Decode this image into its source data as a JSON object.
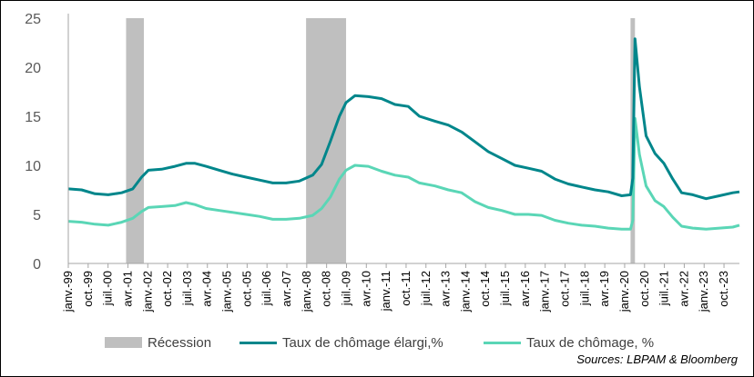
{
  "chart_data": {
    "type": "line",
    "title": "",
    "xlabel": "",
    "ylabel": "",
    "ylim": [
      0,
      25
    ],
    "yticks": [
      0,
      5,
      10,
      15,
      20,
      25
    ],
    "grid": false,
    "legend_position": "bottom",
    "x_range": [
      "1999-01",
      "2024-03"
    ],
    "x_tick_labels": [
      "janv.-99",
      "oct.-99",
      "juil.-00",
      "avr.-01",
      "janv.-02",
      "oct.-02",
      "juil.-03",
      "avr.-04",
      "janv.-05",
      "oct.-05",
      "juil.-06",
      "avr.-07",
      "janv.-08",
      "oct.-08",
      "juil.-09",
      "avr.-10",
      "janv.-11",
      "oct.-11",
      "juil.-12",
      "avr.-13",
      "janv.-14",
      "oct.-14",
      "juil.-15",
      "avr.-16",
      "janv.-17",
      "oct.-17",
      "juil.-18",
      "avr.-19",
      "janv.-20",
      "oct.-20",
      "juil.-21",
      "avr.-22",
      "janv.-23",
      "oct.-23"
    ],
    "recessions": [
      {
        "start": "2001-03",
        "end": "2001-11"
      },
      {
        "start": "2007-12",
        "end": "2009-06"
      },
      {
        "start": "2020-02",
        "end": "2020-04"
      }
    ],
    "series": [
      {
        "name": "Taux de chômage élargi,%",
        "color": "#00868b",
        "points": [
          [
            "1999-01",
            7.6
          ],
          [
            "1999-07",
            7.5
          ],
          [
            "2000-01",
            7.1
          ],
          [
            "2000-07",
            7.0
          ],
          [
            "2001-01",
            7.2
          ],
          [
            "2001-06",
            7.6
          ],
          [
            "2001-10",
            8.8
          ],
          [
            "2002-01",
            9.5
          ],
          [
            "2002-07",
            9.6
          ],
          [
            "2003-01",
            9.9
          ],
          [
            "2003-06",
            10.2
          ],
          [
            "2003-10",
            10.2
          ],
          [
            "2004-03",
            9.9
          ],
          [
            "2004-09",
            9.5
          ],
          [
            "2005-03",
            9.1
          ],
          [
            "2005-09",
            8.8
          ],
          [
            "2006-03",
            8.5
          ],
          [
            "2006-09",
            8.2
          ],
          [
            "2007-03",
            8.2
          ],
          [
            "2007-09",
            8.4
          ],
          [
            "2008-03",
            9.0
          ],
          [
            "2008-07",
            10.1
          ],
          [
            "2008-11",
            12.5
          ],
          [
            "2009-03",
            15.0
          ],
          [
            "2009-06",
            16.4
          ],
          [
            "2009-10",
            17.1
          ],
          [
            "2010-04",
            17.0
          ],
          [
            "2010-10",
            16.8
          ],
          [
            "2011-04",
            16.2
          ],
          [
            "2011-10",
            16.0
          ],
          [
            "2012-03",
            15.0
          ],
          [
            "2012-10",
            14.5
          ],
          [
            "2013-04",
            14.1
          ],
          [
            "2013-10",
            13.4
          ],
          [
            "2014-04",
            12.4
          ],
          [
            "2014-10",
            11.4
          ],
          [
            "2015-04",
            10.7
          ],
          [
            "2015-10",
            10.0
          ],
          [
            "2016-04",
            9.7
          ],
          [
            "2016-10",
            9.4
          ],
          [
            "2017-04",
            8.6
          ],
          [
            "2017-10",
            8.1
          ],
          [
            "2018-04",
            7.8
          ],
          [
            "2018-10",
            7.5
          ],
          [
            "2019-04",
            7.3
          ],
          [
            "2019-10",
            6.9
          ],
          [
            "2020-02",
            7.0
          ],
          [
            "2020-03",
            8.7
          ],
          [
            "2020-04",
            22.9
          ],
          [
            "2020-06",
            18.0
          ],
          [
            "2020-09",
            13.0
          ],
          [
            "2021-01",
            11.2
          ],
          [
            "2021-05",
            10.2
          ],
          [
            "2021-09",
            8.6
          ],
          [
            "2022-01",
            7.2
          ],
          [
            "2022-06",
            7.0
          ],
          [
            "2022-12",
            6.6
          ],
          [
            "2023-06",
            6.9
          ],
          [
            "2023-12",
            7.2
          ],
          [
            "2024-03",
            7.3
          ]
        ]
      },
      {
        "name": "Taux de chômage, %",
        "color": "#5ad6b6",
        "points": [
          [
            "1999-01",
            4.3
          ],
          [
            "1999-07",
            4.2
          ],
          [
            "2000-01",
            4.0
          ],
          [
            "2000-07",
            3.9
          ],
          [
            "2001-01",
            4.2
          ],
          [
            "2001-06",
            4.6
          ],
          [
            "2001-10",
            5.3
          ],
          [
            "2002-01",
            5.7
          ],
          [
            "2002-07",
            5.8
          ],
          [
            "2003-01",
            5.9
          ],
          [
            "2003-06",
            6.2
          ],
          [
            "2003-10",
            6.0
          ],
          [
            "2004-03",
            5.6
          ],
          [
            "2004-09",
            5.4
          ],
          [
            "2005-03",
            5.2
          ],
          [
            "2005-09",
            5.0
          ],
          [
            "2006-03",
            4.8
          ],
          [
            "2006-09",
            4.5
          ],
          [
            "2007-03",
            4.5
          ],
          [
            "2007-09",
            4.6
          ],
          [
            "2008-03",
            4.9
          ],
          [
            "2008-07",
            5.6
          ],
          [
            "2008-11",
            6.8
          ],
          [
            "2009-03",
            8.6
          ],
          [
            "2009-06",
            9.5
          ],
          [
            "2009-10",
            10.0
          ],
          [
            "2010-04",
            9.9
          ],
          [
            "2010-10",
            9.4
          ],
          [
            "2011-04",
            9.0
          ],
          [
            "2011-10",
            8.8
          ],
          [
            "2012-03",
            8.2
          ],
          [
            "2012-10",
            7.9
          ],
          [
            "2013-04",
            7.5
          ],
          [
            "2013-10",
            7.2
          ],
          [
            "2014-04",
            6.3
          ],
          [
            "2014-10",
            5.7
          ],
          [
            "2015-04",
            5.4
          ],
          [
            "2015-10",
            5.0
          ],
          [
            "2016-04",
            5.0
          ],
          [
            "2016-10",
            4.9
          ],
          [
            "2017-04",
            4.4
          ],
          [
            "2017-10",
            4.1
          ],
          [
            "2018-04",
            3.9
          ],
          [
            "2018-10",
            3.8
          ],
          [
            "2019-04",
            3.6
          ],
          [
            "2019-10",
            3.5
          ],
          [
            "2020-02",
            3.5
          ],
          [
            "2020-03",
            4.4
          ],
          [
            "2020-04",
            14.8
          ],
          [
            "2020-06",
            11.1
          ],
          [
            "2020-09",
            7.9
          ],
          [
            "2021-01",
            6.4
          ],
          [
            "2021-05",
            5.8
          ],
          [
            "2021-09",
            4.7
          ],
          [
            "2022-01",
            3.8
          ],
          [
            "2022-06",
            3.6
          ],
          [
            "2022-12",
            3.5
          ],
          [
            "2023-06",
            3.6
          ],
          [
            "2023-12",
            3.7
          ],
          [
            "2024-03",
            3.9
          ]
        ]
      }
    ]
  },
  "legend": {
    "recession_label": "Récession",
    "series1_label": "Taux de chômage élargi,%",
    "series2_label": "Taux de chômage, %"
  },
  "colors": {
    "recession": "#bfbfbf",
    "series1": "#00868b",
    "series2": "#5ad6b6"
  },
  "source": "Sources: LBPAM & Bloomberg"
}
